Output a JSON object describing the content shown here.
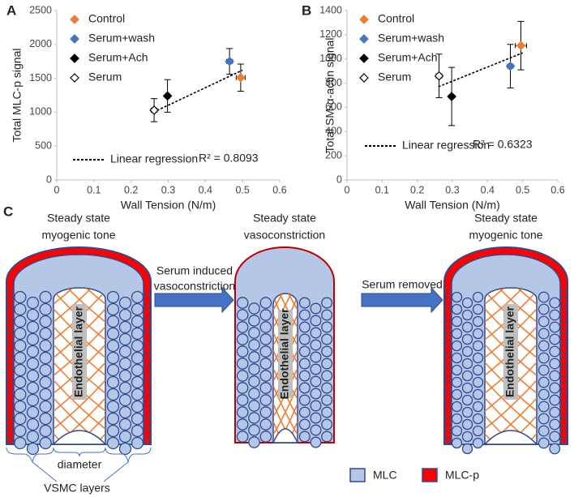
{
  "chart_data": [
    {
      "type": "scatter",
      "panel": "A",
      "ylabel": "Total MLC-p signal",
      "xlabel": "Wall Tension (N/m)",
      "xlim": [
        0,
        0.6
      ],
      "xticks": [
        0,
        0.1,
        0.2,
        0.3,
        0.4,
        0.5,
        0.6
      ],
      "ylim": [
        0,
        2500
      ],
      "yticks": [
        0,
        500,
        1000,
        1500,
        2000,
        2500
      ],
      "series": [
        {
          "name": "Control",
          "color": "#ed7d31",
          "marker": "diamond",
          "x": [
            0.495
          ],
          "values": [
            1510
          ],
          "y_errors": [
            200
          ],
          "x_errors": [
            0.012
          ]
        },
        {
          "name": "Serum+wash",
          "color": "#4472c4",
          "marker": "diamond",
          "x": [
            0.465
          ],
          "values": [
            1750
          ],
          "y_errors": [
            190
          ],
          "x_errors": [
            0.008
          ]
        },
        {
          "name": "Serum+Ach",
          "color": "#000000",
          "marker": "diamond",
          "x": [
            0.298
          ],
          "values": [
            1240
          ],
          "y_errors": [
            240
          ],
          "x_errors": [
            0.006
          ]
        },
        {
          "name": "Serum",
          "color": "#000000",
          "marker": "open-diamond",
          "x": [
            0.262
          ],
          "values": [
            1030
          ],
          "y_errors": [
            170
          ],
          "x_errors": [
            0.008
          ]
        }
      ],
      "regression": {
        "label": "Linear regression",
        "r2_label": "R² = 0.8093",
        "color": "#000000",
        "x": [
          0.26,
          0.5
        ],
        "values": [
          1000,
          1620
        ]
      }
    },
    {
      "type": "scatter",
      "panel": "B",
      "ylabel": "Total SM-α-actin signal",
      "xlabel": "Wall Tension (N/m)",
      "xlim": [
        0,
        0.6
      ],
      "xticks": [
        0,
        0.1,
        0.2,
        0.3,
        0.4,
        0.5,
        0.6
      ],
      "ylim": [
        0,
        1400
      ],
      "yticks": [
        0,
        200,
        400,
        600,
        800,
        1000,
        1200,
        1400
      ],
      "series": [
        {
          "name": "Control",
          "color": "#ed7d31",
          "marker": "diamond",
          "x": [
            0.495
          ],
          "values": [
            1110
          ],
          "y_errors": [
            200
          ],
          "x_errors": [
            0.016
          ]
        },
        {
          "name": "Serum+wash",
          "color": "#4472c4",
          "marker": "diamond",
          "x": [
            0.465
          ],
          "values": [
            940
          ],
          "y_errors": [
            180
          ],
          "x_errors": [
            0.008
          ]
        },
        {
          "name": "Serum+Ach",
          "color": "#000000",
          "marker": "diamond",
          "x": [
            0.298
          ],
          "values": [
            690
          ],
          "y_errors": [
            240
          ],
          "x_errors": [
            0.006
          ]
        },
        {
          "name": "Serum",
          "color": "#000000",
          "marker": "open-diamond",
          "x": [
            0.262
          ],
          "values": [
            860
          ],
          "y_errors": [
            180
          ],
          "x_errors": [
            0.008
          ]
        }
      ],
      "regression": {
        "label": "Linear regression",
        "r2_label": "R² = 0.6323",
        "color": "#000000",
        "x": [
          0.26,
          0.5
        ],
        "values": [
          770,
          1050
        ]
      }
    }
  ],
  "diagram": {
    "panel": "C",
    "states": [
      {
        "title": [
          "Steady state",
          "myogenic tone"
        ],
        "inner_label": "Endothelial layer"
      },
      {
        "title": [
          "Steady state",
          "vasoconstriction"
        ],
        "inner_label": "Endothelial layer"
      },
      {
        "title": [
          "Steady state",
          "myogenic tone"
        ],
        "inner_label": "Endothelial layer"
      }
    ],
    "arrows": [
      [
        "Serum induced",
        "vasoconstriction"
      ],
      [
        "Serum removed"
      ]
    ],
    "diameter_label": "diameter",
    "vsmc_label": "VSMC layers",
    "legend": [
      {
        "label": "MLC",
        "color": "#b4c7e7"
      },
      {
        "label": "MLC-p",
        "color": "#ff0000"
      }
    ]
  }
}
